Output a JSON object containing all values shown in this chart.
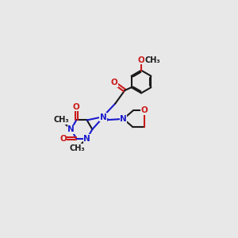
{
  "bg_color": "#e8e8e8",
  "bond_color": "#1a1a1a",
  "n_color": "#1a1acc",
  "o_color": "#cc1a1a",
  "font_size": 7.5,
  "line_width": 1.5,
  "dbo": 0.06,
  "figsize": [
    3.0,
    3.0
  ],
  "dpi": 100,
  "xlim": [
    0,
    10
  ],
  "ylim": [
    0,
    10
  ]
}
